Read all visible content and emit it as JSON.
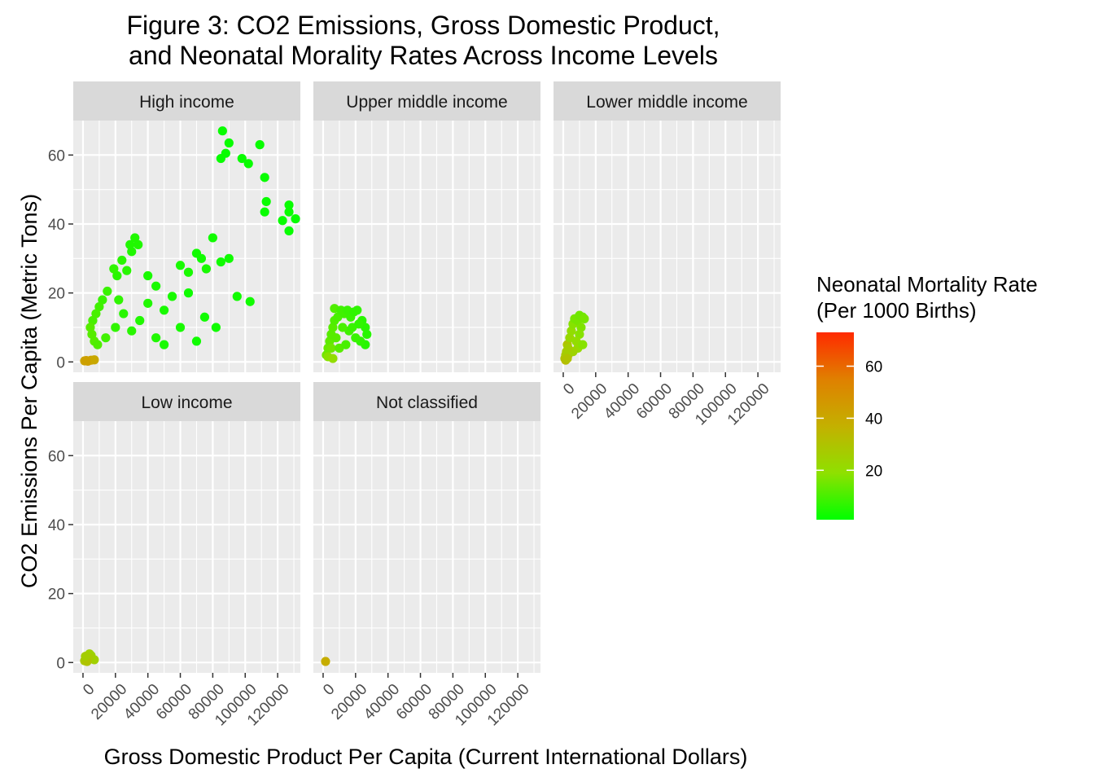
{
  "chart_data": {
    "type": "scatter",
    "title_line1": "Figure 3: CO2 Emissions, Gross Domestic Product,",
    "title_line2": "and Neonatal Morality Rates Across Income Levels",
    "xlabel": "Gross Domestic Product Per Capita (Current International Dollars)",
    "ylabel": "CO2 Emissions Per Capita (Metric Tons)",
    "xlim": [
      -6000,
      134000
    ],
    "ylim": [
      -3,
      70
    ],
    "x_ticks": [
      0,
      20000,
      40000,
      60000,
      80000,
      100000,
      120000
    ],
    "x_tick_labels": [
      "0",
      "20000",
      "40000",
      "60000",
      "80000",
      "100000",
      "120000"
    ],
    "y_ticks": [
      0,
      20,
      40,
      60
    ],
    "y_tick_labels": [
      "0",
      "20",
      "40",
      "60"
    ],
    "grid": true,
    "facets": [
      {
        "name": "High income",
        "points": [
          [
            86000,
            67,
            2
          ],
          [
            90000,
            63.5,
            2
          ],
          [
            85000,
            59,
            2
          ],
          [
            88000,
            60.5,
            2
          ],
          [
            98000,
            59,
            2
          ],
          [
            102000,
            57.5,
            2
          ],
          [
            109000,
            63,
            2
          ],
          [
            112000,
            53.5,
            2
          ],
          [
            113000,
            46.5,
            2
          ],
          [
            112000,
            43.5,
            2
          ],
          [
            123000,
            41,
            2
          ],
          [
            127000,
            45.5,
            2
          ],
          [
            127000,
            43.5,
            2
          ],
          [
            131000,
            41.5,
            2
          ],
          [
            127000,
            38,
            2
          ],
          [
            80000,
            36,
            3
          ],
          [
            70000,
            31.5,
            3
          ],
          [
            73000,
            30,
            3
          ],
          [
            85000,
            29,
            3
          ],
          [
            90000,
            30,
            3
          ],
          [
            76000,
            27,
            4
          ],
          [
            60000,
            28,
            4
          ],
          [
            40000,
            25,
            4
          ],
          [
            45000,
            22,
            4
          ],
          [
            95000,
            19,
            3
          ],
          [
            103000,
            17.5,
            3
          ],
          [
            82000,
            10,
            3
          ],
          [
            30000,
            32,
            5
          ],
          [
            32000,
            36,
            5
          ],
          [
            29000,
            34,
            5
          ],
          [
            34000,
            34,
            5
          ],
          [
            24000,
            29.5,
            6
          ],
          [
            21000,
            25,
            6
          ],
          [
            19000,
            27,
            7
          ],
          [
            27000,
            26.5,
            6
          ],
          [
            15000,
            20.5,
            8
          ],
          [
            12000,
            18,
            8
          ],
          [
            10000,
            16,
            9
          ],
          [
            8000,
            14,
            10
          ],
          [
            6000,
            12,
            10
          ],
          [
            4500,
            10,
            12
          ],
          [
            5500,
            8,
            12
          ],
          [
            7000,
            6,
            12
          ],
          [
            9000,
            5,
            11
          ],
          [
            14000,
            7,
            9
          ],
          [
            20000,
            10,
            7
          ],
          [
            25000,
            14,
            6
          ],
          [
            35000,
            12,
            5
          ],
          [
            50000,
            15,
            4
          ],
          [
            55000,
            19,
            4
          ],
          [
            65000,
            20,
            3
          ],
          [
            60000,
            10,
            4
          ],
          [
            45000,
            7,
            5
          ],
          [
            30000,
            9,
            6
          ],
          [
            40000,
            17,
            5
          ],
          [
            70000,
            6,
            3
          ],
          [
            75000,
            13,
            3
          ],
          [
            65000,
            26,
            4
          ],
          [
            50000,
            5,
            4
          ],
          [
            22000,
            18,
            7
          ],
          [
            1000,
            0.3,
            42
          ],
          [
            3000,
            0.2,
            44
          ],
          [
            5000,
            0.5,
            42
          ],
          [
            7000,
            0.6,
            40
          ],
          [
            2000,
            0.4,
            43
          ]
        ]
      },
      {
        "name": "Upper middle income",
        "points": [
          [
            2000,
            2,
            15
          ],
          [
            3000,
            4,
            14
          ],
          [
            4000,
            6,
            13
          ],
          [
            5000,
            8,
            12
          ],
          [
            6000,
            10,
            12
          ],
          [
            7000,
            12,
            11
          ],
          [
            7000,
            15.5,
            11
          ],
          [
            9000,
            13,
            10
          ],
          [
            11000,
            15,
            9
          ],
          [
            13000,
            14,
            9
          ],
          [
            15000,
            15,
            8
          ],
          [
            17000,
            13,
            8
          ],
          [
            19000,
            14.5,
            7
          ],
          [
            21000,
            15,
            7
          ],
          [
            24000,
            12,
            6
          ],
          [
            26000,
            10,
            6
          ],
          [
            27000,
            8,
            6
          ],
          [
            26000,
            5,
            6
          ],
          [
            23000,
            6,
            7
          ],
          [
            20000,
            7,
            8
          ],
          [
            16000,
            9,
            9
          ],
          [
            12000,
            10,
            10
          ],
          [
            8000,
            7,
            12
          ],
          [
            5000,
            4,
            15
          ],
          [
            3000,
            1.5,
            18
          ],
          [
            10000,
            4,
            12
          ],
          [
            14000,
            5,
            10
          ],
          [
            18000,
            10,
            8
          ],
          [
            22000,
            11,
            7
          ],
          [
            6000,
            1,
            20
          ]
        ]
      },
      {
        "name": "Lower middle income",
        "points": [
          [
            1000,
            1,
            30
          ],
          [
            1500,
            2,
            28
          ],
          [
            2000,
            3,
            27
          ],
          [
            2500,
            5,
            30
          ],
          [
            3000,
            2,
            26
          ],
          [
            4000,
            7,
            22
          ],
          [
            5000,
            9,
            20
          ],
          [
            6000,
            11,
            18
          ],
          [
            7000,
            12.5,
            16
          ],
          [
            9000,
            12,
            16
          ],
          [
            10000,
            13.5,
            15
          ],
          [
            12000,
            13,
            15
          ],
          [
            13000,
            12.5,
            16
          ],
          [
            11000,
            10,
            17
          ],
          [
            10000,
            8,
            18
          ],
          [
            8000,
            6,
            20
          ],
          [
            9000,
            4,
            21
          ],
          [
            6000,
            3,
            24
          ],
          [
            3000,
            4,
            26
          ],
          [
            12000,
            5,
            18
          ],
          [
            1500,
            0.5,
            32
          ],
          [
            2500,
            1,
            30
          ]
        ]
      },
      {
        "name": "Low income",
        "points": [
          [
            1000,
            0.5,
            28
          ],
          [
            2000,
            1,
            27
          ],
          [
            3000,
            2,
            26
          ],
          [
            4000,
            2.5,
            25
          ],
          [
            5000,
            2,
            24
          ],
          [
            6000,
            1,
            26
          ],
          [
            7000,
            0.8,
            25
          ],
          [
            3500,
            1.5,
            27
          ],
          [
            2500,
            0.3,
            30
          ],
          [
            1500,
            1.8,
            26
          ]
        ]
      },
      {
        "name": "Not classified",
        "points": [
          [
            1500,
            0.3,
            38
          ]
        ]
      }
    ],
    "colorbar": {
      "title_line1": "Neonatal Mortality Rate",
      "title_line2": "(Per 1000 Births)",
      "min": 1,
      "max": 73,
      "ticks": [
        20,
        40,
        60
      ],
      "tick_labels": [
        "20",
        "40",
        "60"
      ],
      "low_color": "#00ff00",
      "high_color": "#ff2a00",
      "gradient_stops": [
        "#00ff00",
        "#8fe000",
        "#c4b000",
        "#e08000",
        "#ff2a00"
      ]
    },
    "colors": {
      "panel_bg": "#ebebeb",
      "grid_major": "#ffffff",
      "strip_bg": "#d9d9d9"
    }
  }
}
